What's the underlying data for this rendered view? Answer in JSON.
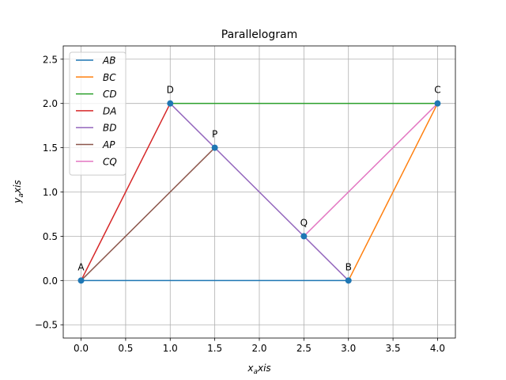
{
  "chart_data": {
    "type": "line",
    "title": "Parallelogram",
    "xlabel_main": "x",
    "xlabel_sub": "a",
    "xlabel_tail": "xis",
    "ylabel_main": "y",
    "ylabel_sub": "a",
    "ylabel_tail": "xis",
    "xlim": [
      -0.2,
      4.2
    ],
    "ylim": [
      -0.65,
      2.65
    ],
    "xticks": [
      "0.0",
      "0.5",
      "1.0",
      "1.5",
      "2.0",
      "2.5",
      "3.0",
      "3.5",
      "4.0"
    ],
    "yticks": [
      "−0.5",
      "0.0",
      "0.5",
      "1.0",
      "1.5",
      "2.0",
      "2.5"
    ],
    "xtick_values": [
      0,
      0.5,
      1,
      1.5,
      2,
      2.5,
      3,
      3.5,
      4
    ],
    "ytick_values": [
      -0.5,
      0,
      0.5,
      1,
      1.5,
      2,
      2.5
    ],
    "grid": true,
    "legend_position": "upper-left",
    "points": [
      {
        "label": "A",
        "x": 0,
        "y": 0
      },
      {
        "label": "B",
        "x": 3,
        "y": 0
      },
      {
        "label": "C",
        "x": 4,
        "y": 2
      },
      {
        "label": "D",
        "x": 1,
        "y": 2
      },
      {
        "label": "P",
        "x": 1.5,
        "y": 1.5
      },
      {
        "label": "Q",
        "x": 2.5,
        "y": 0.5
      }
    ],
    "point_color": "#1f77b4",
    "series": [
      {
        "name": "AB",
        "color": "#1f77b4",
        "x": [
          0,
          3
        ],
        "y": [
          0,
          0
        ]
      },
      {
        "name": "BC",
        "color": "#ff7f0e",
        "x": [
          3,
          4
        ],
        "y": [
          0,
          2
        ]
      },
      {
        "name": "CD",
        "color": "#2ca02c",
        "x": [
          4,
          1
        ],
        "y": [
          2,
          2
        ]
      },
      {
        "name": "DA",
        "color": "#d62728",
        "x": [
          1,
          0
        ],
        "y": [
          2,
          0
        ]
      },
      {
        "name": "BD",
        "color": "#9467bd",
        "x": [
          3,
          1
        ],
        "y": [
          0,
          2
        ]
      },
      {
        "name": "AP",
        "color": "#8c564b",
        "x": [
          0,
          1.5
        ],
        "y": [
          0,
          1.5
        ]
      },
      {
        "name": "CQ",
        "color": "#e377c2",
        "x": [
          4,
          2.5
        ],
        "y": [
          2,
          0.5
        ]
      }
    ]
  }
}
